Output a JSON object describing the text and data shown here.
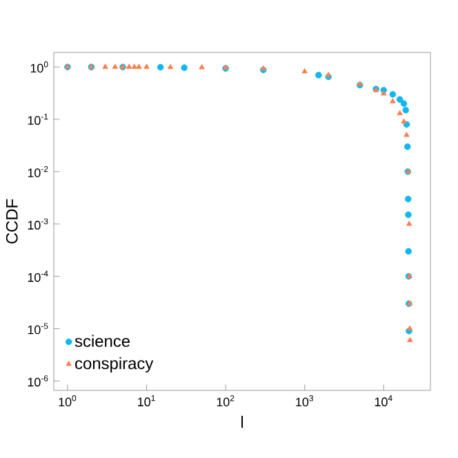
{
  "chart_data": {
    "type": "scatter",
    "xlabel": "l",
    "ylabel": "CCDF",
    "log": "xy",
    "legend": "bottom left",
    "xlim": [
      0.67,
      39000
    ],
    "ylim": [
      6.6e-07,
      1.9
    ],
    "xticks": [
      {
        "value": 1,
        "label": "10$^{0}$"
      },
      {
        "value": 10,
        "label": "10$^{1}$"
      },
      {
        "value": 100,
        "label": "10$^{2}$"
      },
      {
        "value": 1000,
        "label": "10$^{3}$"
      },
      {
        "value": 10000,
        "label": "10$^{4}$"
      }
    ],
    "yticks": [
      {
        "value": 1e-06,
        "label": "10$^{-6}$"
      },
      {
        "value": 1e-05,
        "label": "10$^{-5}$"
      },
      {
        "value": 0.0001,
        "label": "10$^{-4}$"
      },
      {
        "value": 0.001,
        "label": "10$^{-3}$"
      },
      {
        "value": 0.01,
        "label": "10$^{-2}$"
      },
      {
        "value": 0.1,
        "label": "10$^{-1}$"
      },
      {
        "value": 1,
        "label": "10$^{0}$"
      }
    ],
    "series": [
      {
        "name": "science",
        "color": "#10b8ee",
        "marker": "circle",
        "x": [
          1,
          2,
          5,
          15,
          30,
          100,
          300,
          1500,
          2000,
          5000,
          8000,
          10000,
          13000,
          16000,
          18000,
          19000,
          19500,
          20000,
          20200,
          20400,
          20500,
          20600,
          20700,
          20800,
          20900
        ],
        "values": [
          1.0,
          1.0,
          1.0,
          0.99,
          0.97,
          0.94,
          0.88,
          0.7,
          0.65,
          0.45,
          0.38,
          0.36,
          0.3,
          0.24,
          0.2,
          0.15,
          0.08,
          0.03,
          0.01,
          0.003,
          0.0015,
          0.0003,
          0.0001,
          3e-05,
          9e-06
        ]
      },
      {
        "name": "conspiracy",
        "color": "#ff7f50",
        "marker": "triangle",
        "x": [
          1,
          2,
          3,
          4,
          5,
          6,
          7,
          8,
          10,
          20,
          50,
          100,
          300,
          1000,
          2000,
          5000,
          8000,
          10000,
          13000,
          16000,
          18000,
          19500,
          20500,
          21000,
          21200,
          21300,
          21400,
          21500
        ],
        "values": [
          1.0,
          1.0,
          1.0,
          1.0,
          1.0,
          1.0,
          1.0,
          1.0,
          1.0,
          0.99,
          0.98,
          0.97,
          0.93,
          0.82,
          0.7,
          0.47,
          0.36,
          0.31,
          0.22,
          0.13,
          0.09,
          0.05,
          0.01,
          0.001,
          0.0001,
          3e-05,
          1e-05,
          6e-06
        ]
      }
    ]
  }
}
